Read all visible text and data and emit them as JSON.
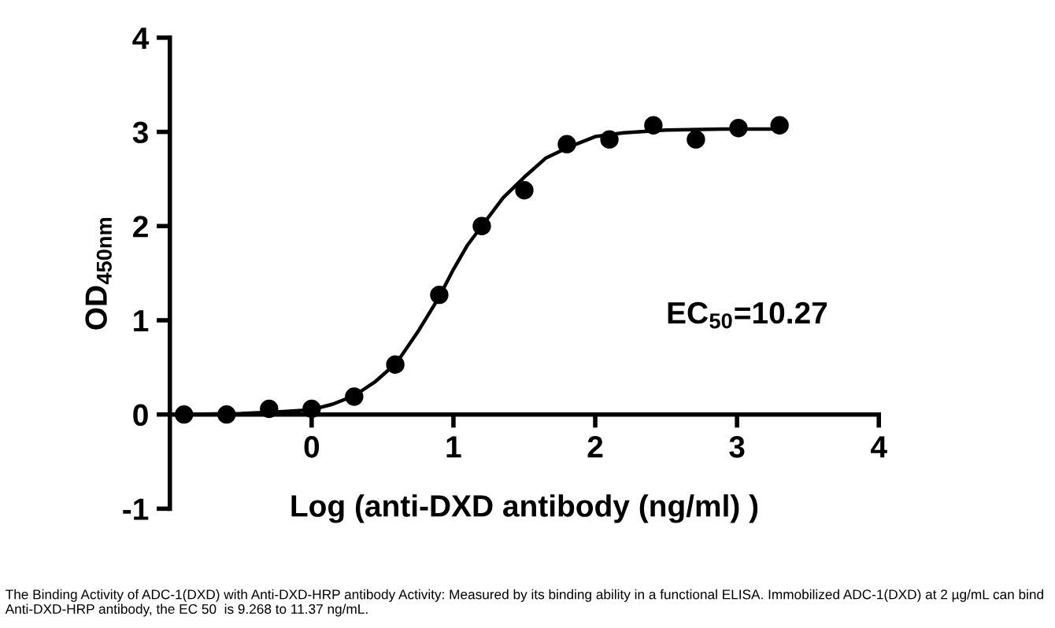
{
  "chart_data": {
    "type": "scatter",
    "xlabel": "Log (anti-DXD antibody (ng/ml) )",
    "ylabel": "OD$_{450nm}$",
    "xlim": [
      -1,
      4
    ],
    "xticks": [
      0,
      1,
      2,
      3,
      4
    ],
    "ylim": [
      -1,
      4
    ],
    "yticks": [
      -1,
      0,
      1,
      2,
      3,
      4
    ],
    "grid": false,
    "legend": false,
    "series": [
      {
        "color": "#000000",
        "marker": "circle",
        "x": [
          -0.9,
          -0.6,
          -0.3,
          0,
          0.3,
          0.59,
          0.9,
          1.2,
          1.5,
          1.8,
          2.1,
          2.41,
          2.71,
          3.01,
          3.3
        ],
        "values": [
          0,
          0,
          0.06,
          0.06,
          0.19,
          0.53,
          1.27,
          2.0,
          2.38,
          2.87,
          2.92,
          3.07,
          2.92,
          3.04,
          3.07
        ]
      },
      {
        "type": "line",
        "color": "#000000",
        "marker": "none",
        "line_style": "solid",
        "x": [
          -0.9,
          -0.5,
          -0.2,
          0,
          0.15,
          0.3,
          0.45,
          0.6,
          0.75,
          0.9,
          1.0,
          1.1,
          1.2,
          1.35,
          1.5,
          1.65,
          1.8,
          2.0,
          2.2,
          2.5,
          2.9,
          3.3
        ],
        "values": [
          0,
          0.01,
          0.03,
          0.05,
          0.11,
          0.2,
          0.35,
          0.55,
          0.88,
          1.25,
          1.54,
          1.8,
          2.0,
          2.3,
          2.52,
          2.72,
          2.83,
          2.95,
          2.99,
          3.02,
          3.03,
          3.03
        ]
      }
    ],
    "annotations": [
      "EC$_{50}$=10.27",
      "The Binding Activity of ADC-1(DXD) with Anti-DXD-HRP antibody Activity: Measured by its binding ability in a functional ELISA. Immobilized ADC-1(DXD) at 2 µg/mL can bind Anti-DXD-HRP antibody, the EC 50  is 9.268 to 11.37 ng/mL."
    ]
  }
}
